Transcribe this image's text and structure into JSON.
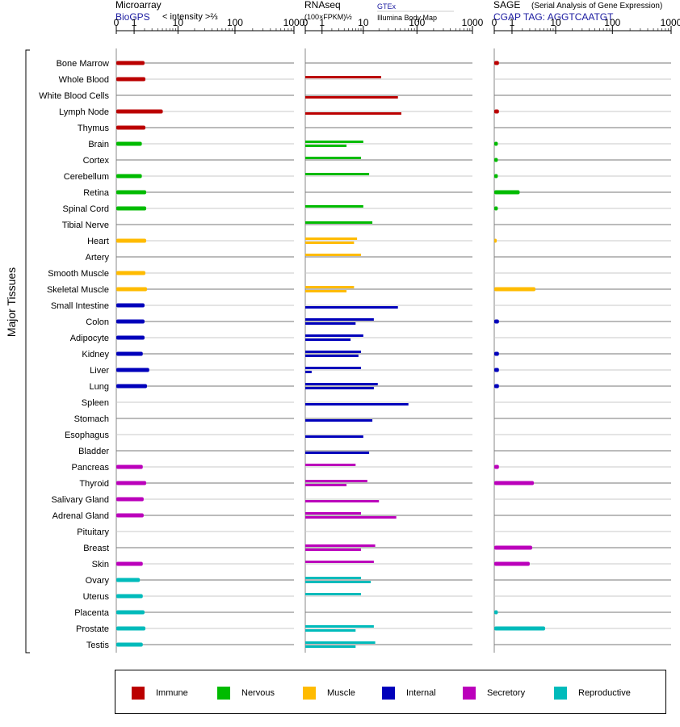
{
  "colors": {
    "Immune": "#bb0000",
    "Nervous": "#00bb00",
    "Muscle": "#ffbb00",
    "Internal": "#0000bb",
    "Secretory": "#bb00bb",
    "Reproductive": "#00bbbb"
  },
  "panels": {
    "microarray": {
      "title": "Microarray",
      "source": "BioGPS",
      "measure": "< intensity >⅔"
    },
    "rnaseq": {
      "title": "RNAseq",
      "measure": "(100×FPKM)½",
      "source1": "GTEx",
      "source2": "Illumina Body Map"
    },
    "sage": {
      "title": "SAGE",
      "subtitle": "(Serial Analysis of Gene Expression)",
      "tag": "CGAP TAG: AGGTCAATGT"
    }
  },
  "ylabel": "Major Tissues",
  "legend": [
    "Immune",
    "Nervous",
    "Muscle",
    "Internal",
    "Secretory",
    "Reproductive"
  ],
  "chart_data": {
    "type": "bar",
    "x_scale": "log1p",
    "x_ticks": [
      "0",
      "1",
      "10",
      "100",
      "1000"
    ],
    "xlim": [
      0,
      1000
    ],
    "categories": [
      "Bone Marrow",
      "Whole Blood",
      "White Blood Cells",
      "Lymph Node",
      "Thymus",
      "Brain",
      "Cortex",
      "Cerebellum",
      "Retina",
      "Spinal Cord",
      "Tibial Nerve",
      "Heart",
      "Artery",
      "Smooth Muscle",
      "Skeletal Muscle",
      "Small Intestine",
      "Colon",
      "Adipocyte",
      "Kidney",
      "Liver",
      "Lung",
      "Spleen",
      "Stomach",
      "Esophagus",
      "Bladder",
      "Pancreas",
      "Thyroid",
      "Salivary Gland",
      "Adrenal Gland",
      "Pituitary",
      "Breast",
      "Skin",
      "Ovary",
      "Uterus",
      "Placenta",
      "Prostate",
      "Testis"
    ],
    "groups": [
      "Immune",
      "Immune",
      "Immune",
      "Immune",
      "Immune",
      "Nervous",
      "Nervous",
      "Nervous",
      "Nervous",
      "Nervous",
      "Nervous",
      "Muscle",
      "Muscle",
      "Muscle",
      "Muscle",
      "Internal",
      "Internal",
      "Internal",
      "Internal",
      "Internal",
      "Internal",
      "Internal",
      "Internal",
      "Internal",
      "Internal",
      "Secretory",
      "Secretory",
      "Secretory",
      "Secretory",
      "Secretory",
      "Secretory",
      "Secretory",
      "Reproductive",
      "Reproductive",
      "Reproductive",
      "Reproductive",
      "Reproductive"
    ],
    "series": [
      {
        "name": "Microarray",
        "values": [
          2.0,
          2.1,
          null,
          5.1,
          2.1,
          1.7,
          null,
          1.7,
          2.2,
          2.2,
          null,
          2.2,
          null,
          2.1,
          2.3,
          2.0,
          2.0,
          2.0,
          1.8,
          2.6,
          2.3,
          null,
          null,
          null,
          null,
          1.8,
          2.2,
          1.9,
          1.9,
          null,
          null,
          1.8,
          1.5,
          1.8,
          2.0,
          2.1,
          1.8
        ]
      },
      {
        "name": "RNAseq GTEx",
        "values": [
          null,
          22,
          null,
          null,
          null,
          10,
          9,
          13,
          null,
          10,
          15,
          7.5,
          9,
          null,
          6.5,
          null,
          16,
          10,
          9,
          9,
          19,
          null,
          null,
          null,
          null,
          7,
          12,
          null,
          9,
          null,
          17,
          16,
          9,
          9,
          null,
          16,
          17
        ]
      },
      {
        "name": "RNAseq Illumina Body Map",
        "values": [
          null,
          null,
          45,
          52,
          null,
          4.5,
          null,
          null,
          null,
          null,
          null,
          6.5,
          null,
          null,
          4.5,
          45,
          7,
          5.5,
          8,
          0.3,
          16,
          70,
          15,
          10,
          13,
          null,
          4.5,
          20,
          42,
          null,
          9,
          null,
          14,
          null,
          null,
          7,
          7
        ]
      },
      {
        "name": "SAGE",
        "values": [
          0.2,
          null,
          null,
          0.2,
          null,
          0.15,
          0.15,
          0.15,
          1.7,
          0.15,
          null,
          0.1,
          null,
          null,
          4.0,
          null,
          0.2,
          null,
          0.2,
          0.2,
          0.2,
          null,
          null,
          null,
          null,
          0.2,
          3.7,
          null,
          null,
          null,
          3.4,
          3.0,
          null,
          null,
          0.15,
          6.3,
          null
        ]
      }
    ]
  }
}
